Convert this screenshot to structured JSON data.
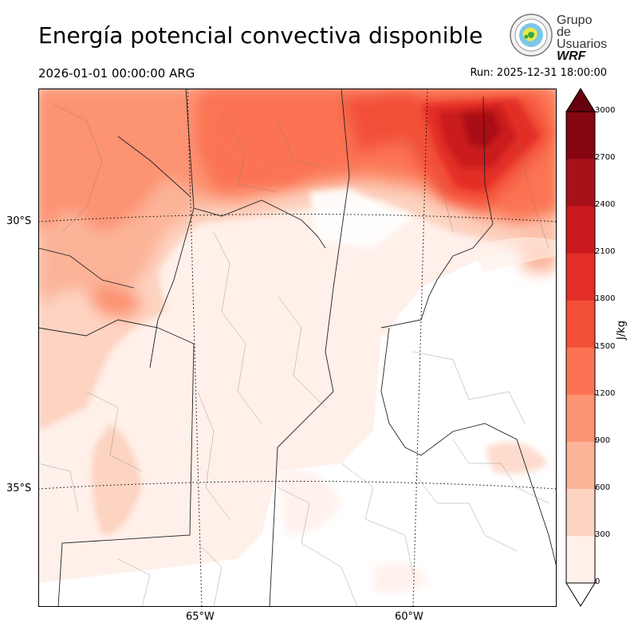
{
  "header": {
    "title": "Energía potencial convectiva disponible",
    "valid_time": "2026-01-01 00:00:00 ARG",
    "run_time": "Run: 2025-12-31 18:00:00"
  },
  "logo": {
    "line1": "Grupo de",
    "line2": "Usuarios",
    "line3": "WRF"
  },
  "map": {
    "latitude_labels": [
      "30°S",
      "35°S"
    ],
    "longitude_labels": [
      "65°W",
      "60°W"
    ]
  },
  "colorbar": {
    "unit": "J/kg",
    "ticks": [
      "0",
      "300",
      "600",
      "900",
      "1200",
      "1500",
      "1800",
      "2100",
      "2400",
      "2700",
      "3000"
    ],
    "colors": [
      "#fff0ea",
      "#fdd3c1",
      "#fcb499",
      "#fc9372",
      "#fb7353",
      "#f34f37",
      "#e32f27",
      "#ca1a1d",
      "#a91118",
      "#850610"
    ],
    "extend": "both"
  }
}
